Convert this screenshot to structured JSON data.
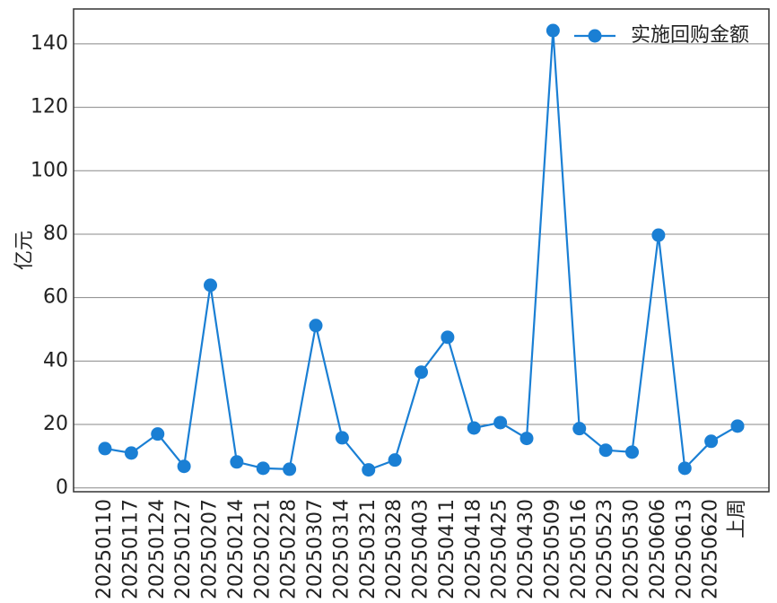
{
  "chart_data": {
    "type": "line",
    "y_label": "亿元",
    "categories": [
      "20250110",
      "20250117",
      "20250124",
      "20250127",
      "20250207",
      "20250214",
      "20250221",
      "20250228",
      "20250307",
      "20250314",
      "20250321",
      "20250328",
      "20250403",
      "20250411",
      "20250418",
      "20250425",
      "20250430",
      "20250509",
      "20250516",
      "20250523",
      "20250530",
      "20250606",
      "20250613",
      "20250620",
      "上周"
    ],
    "series": [
      {
        "name": "实施回购金额",
        "color": "#1a7fd4",
        "values": [
          12.4,
          11.0,
          17.0,
          6.8,
          63.9,
          8.2,
          6.2,
          5.9,
          51.2,
          15.8,
          5.7,
          8.8,
          36.5,
          47.5,
          18.9,
          20.6,
          15.6,
          144.2,
          18.7,
          11.9,
          11.3,
          79.7,
          6.2,
          14.7,
          19.5
        ]
      }
    ],
    "ylim": [
      -1.2,
      151
    ],
    "yticks": [
      0,
      20,
      40,
      60,
      80,
      100,
      120,
      140
    ],
    "grid": true,
    "legend": "upper right"
  }
}
